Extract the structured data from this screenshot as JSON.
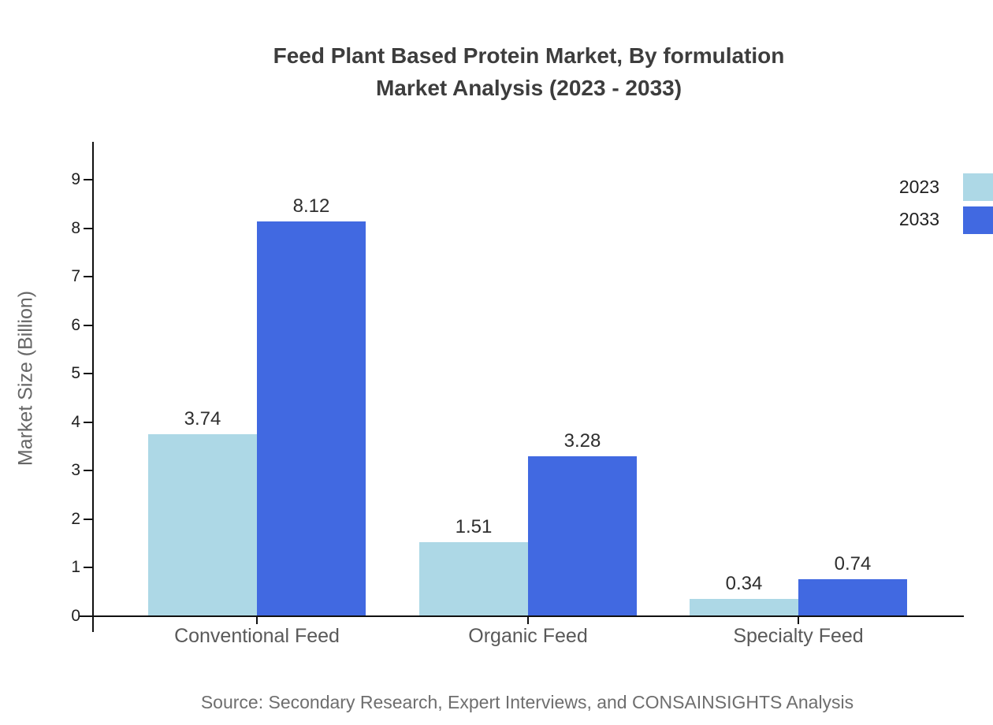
{
  "title": {
    "line1": "Feed Plant Based Protein Market, By formulation",
    "line2": "Market Analysis (2023 - 2033)"
  },
  "source": "Source: Secondary Research, Expert Interviews, and CONSAINSIGHTS Analysis",
  "colors": {
    "series_2023": "#ADD8E6",
    "series_2033": "#4169E1",
    "axis": "#101010",
    "title_text": "#3d3d3d",
    "value_label_text": "#2e2e2e",
    "category_text": "#595959",
    "muted_text": "#6e6e6e"
  },
  "legend": {
    "items": [
      {
        "label": "2023"
      },
      {
        "label": "2033"
      }
    ]
  },
  "chart_data": {
    "type": "bar",
    "title": "Feed Plant Based Protein Market, By formulation Market Analysis (2023 - 2033)",
    "categories": [
      "Conventional Feed",
      "Organic Feed",
      "Specialty Feed"
    ],
    "series": [
      {
        "name": "2023",
        "color": "#ADD8E6",
        "values": [
          3.74,
          1.51,
          0.34
        ]
      },
      {
        "name": "2033",
        "color": "#4169E1",
        "values": [
          8.12,
          3.28,
          0.74
        ]
      }
    ],
    "value_labels": [
      [
        "3.74",
        "1.51",
        "0.34"
      ],
      [
        "8.12",
        "3.28",
        "0.74"
      ]
    ],
    "xlabel": "",
    "ylabel": "Market Size (Billion)",
    "ylim": [
      0,
      9
    ],
    "ytick_step": 1,
    "yticks": [
      0,
      1,
      2,
      3,
      4,
      5,
      6,
      7,
      8,
      9
    ],
    "grid": false,
    "legend_position": "top-right",
    "bar_value_decimals": 2
  }
}
